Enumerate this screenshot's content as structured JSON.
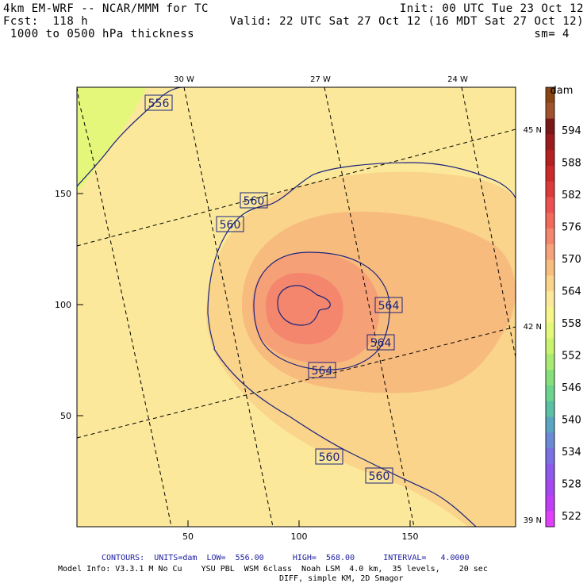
{
  "header": {
    "model": "4km EM-WRF -- NCAR/MMM for TC",
    "forecast": "Fcst:  118 h",
    "field": " 1000 to 0500 hPa thickness",
    "init": "Init: 00 UTC Tue 23 Oct 12",
    "valid": "Valid: 22 UTC Sat 27 Oct 12 (16 MDT Sat 27 Oct 12)",
    "smooth": "sm= 4"
  },
  "map": {
    "x_ticks": [
      "50",
      "100",
      "150"
    ],
    "y_ticks": [
      "50",
      "100",
      "150"
    ],
    "lon_labels": [
      "30 W",
      "27 W",
      "24 W"
    ],
    "lat_labels": [
      "45 N",
      "42 N",
      "39 N"
    ],
    "contour_labels": [
      "556",
      "560",
      "560",
      "564",
      "564",
      "564",
      "560",
      "560"
    ]
  },
  "colorbar": {
    "unit": "dam",
    "levels": [
      "594",
      "588",
      "582",
      "576",
      "570",
      "564",
      "558",
      "552",
      "546",
      "540",
      "534",
      "528",
      "522"
    ],
    "colors": [
      "#8b4513",
      "#a0522d",
      "#7a1818",
      "#9a1c1c",
      "#b52020",
      "#cc2a2a",
      "#dd3b3b",
      "#ec5050",
      "#f26a5a",
      "#f3866c",
      "#f6a37a",
      "#f9bd80",
      "#fad48a",
      "#fbe89a",
      "#f5f58a",
      "#e4f77a",
      "#c8f26f",
      "#a8ea72",
      "#86e07a",
      "#6cd48e",
      "#5cc0a5",
      "#5aa6c0",
      "#6a8ad6",
      "#7a70e4",
      "#8d5aea",
      "#a648f0",
      "#c03ef5",
      "#e040fb"
    ]
  },
  "footer": {
    "contours": "CONTOURS:  UNITS=dam  LOW=  556.00      HIGH=  568.00      INTERVAL=   4.0000",
    "model_info": "Model Info: V3.3.1 M No Cu    YSU PBL  WSM 6class  Noah LSM  4.0 km,  35 levels,    20 sec",
    "diff": "DIFF, simple KM, 2D Smagor"
  }
}
